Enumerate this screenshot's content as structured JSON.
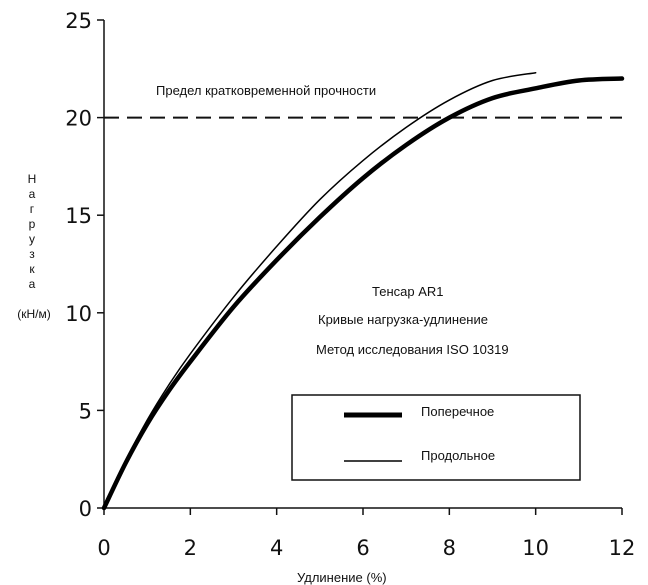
{
  "chart_data": {
    "type": "line",
    "xlabel": "Удлинение (%)",
    "ylabel_letters": [
      "Н",
      "а",
      "г",
      "р",
      "у",
      "з",
      "к",
      "а"
    ],
    "ylabel_unit": "(кН/м)",
    "xlim": [
      0,
      12
    ],
    "ylim": [
      0,
      25
    ],
    "x_ticks": [
      "0",
      "2",
      "4",
      "6",
      "8",
      "10",
      "12"
    ],
    "y_ticks": [
      "0",
      "5",
      "10",
      "15",
      "20",
      "25"
    ],
    "grid": false,
    "reference_line": {
      "y": 20,
      "label": "Предел кратковременной прочности",
      "style": "dashed"
    },
    "annotations": [
      "Тенсар AR1",
      "Кривые нагрузка-удлинение",
      "Метод исследования ISO 10319"
    ],
    "legend_position": "bottom-right",
    "series": [
      {
        "name": "Поперечное",
        "style": "thick",
        "x": [
          0,
          0.5,
          1,
          1.5,
          2,
          3,
          4,
          5,
          6,
          7,
          8,
          9,
          10,
          11,
          12
        ],
        "y": [
          0,
          2.3,
          4.3,
          6.0,
          7.5,
          10.3,
          12.7,
          14.9,
          16.9,
          18.6,
          20.0,
          21.0,
          21.5,
          21.9,
          22.0
        ]
      },
      {
        "name": "Продольное",
        "style": "thin",
        "x": [
          0,
          0.5,
          1,
          1.5,
          2,
          3,
          4,
          5,
          6,
          7,
          8,
          9,
          10
        ],
        "y": [
          0,
          2.4,
          4.5,
          6.3,
          7.9,
          10.8,
          13.4,
          15.8,
          17.8,
          19.5,
          20.9,
          21.9,
          22.3
        ]
      }
    ]
  }
}
